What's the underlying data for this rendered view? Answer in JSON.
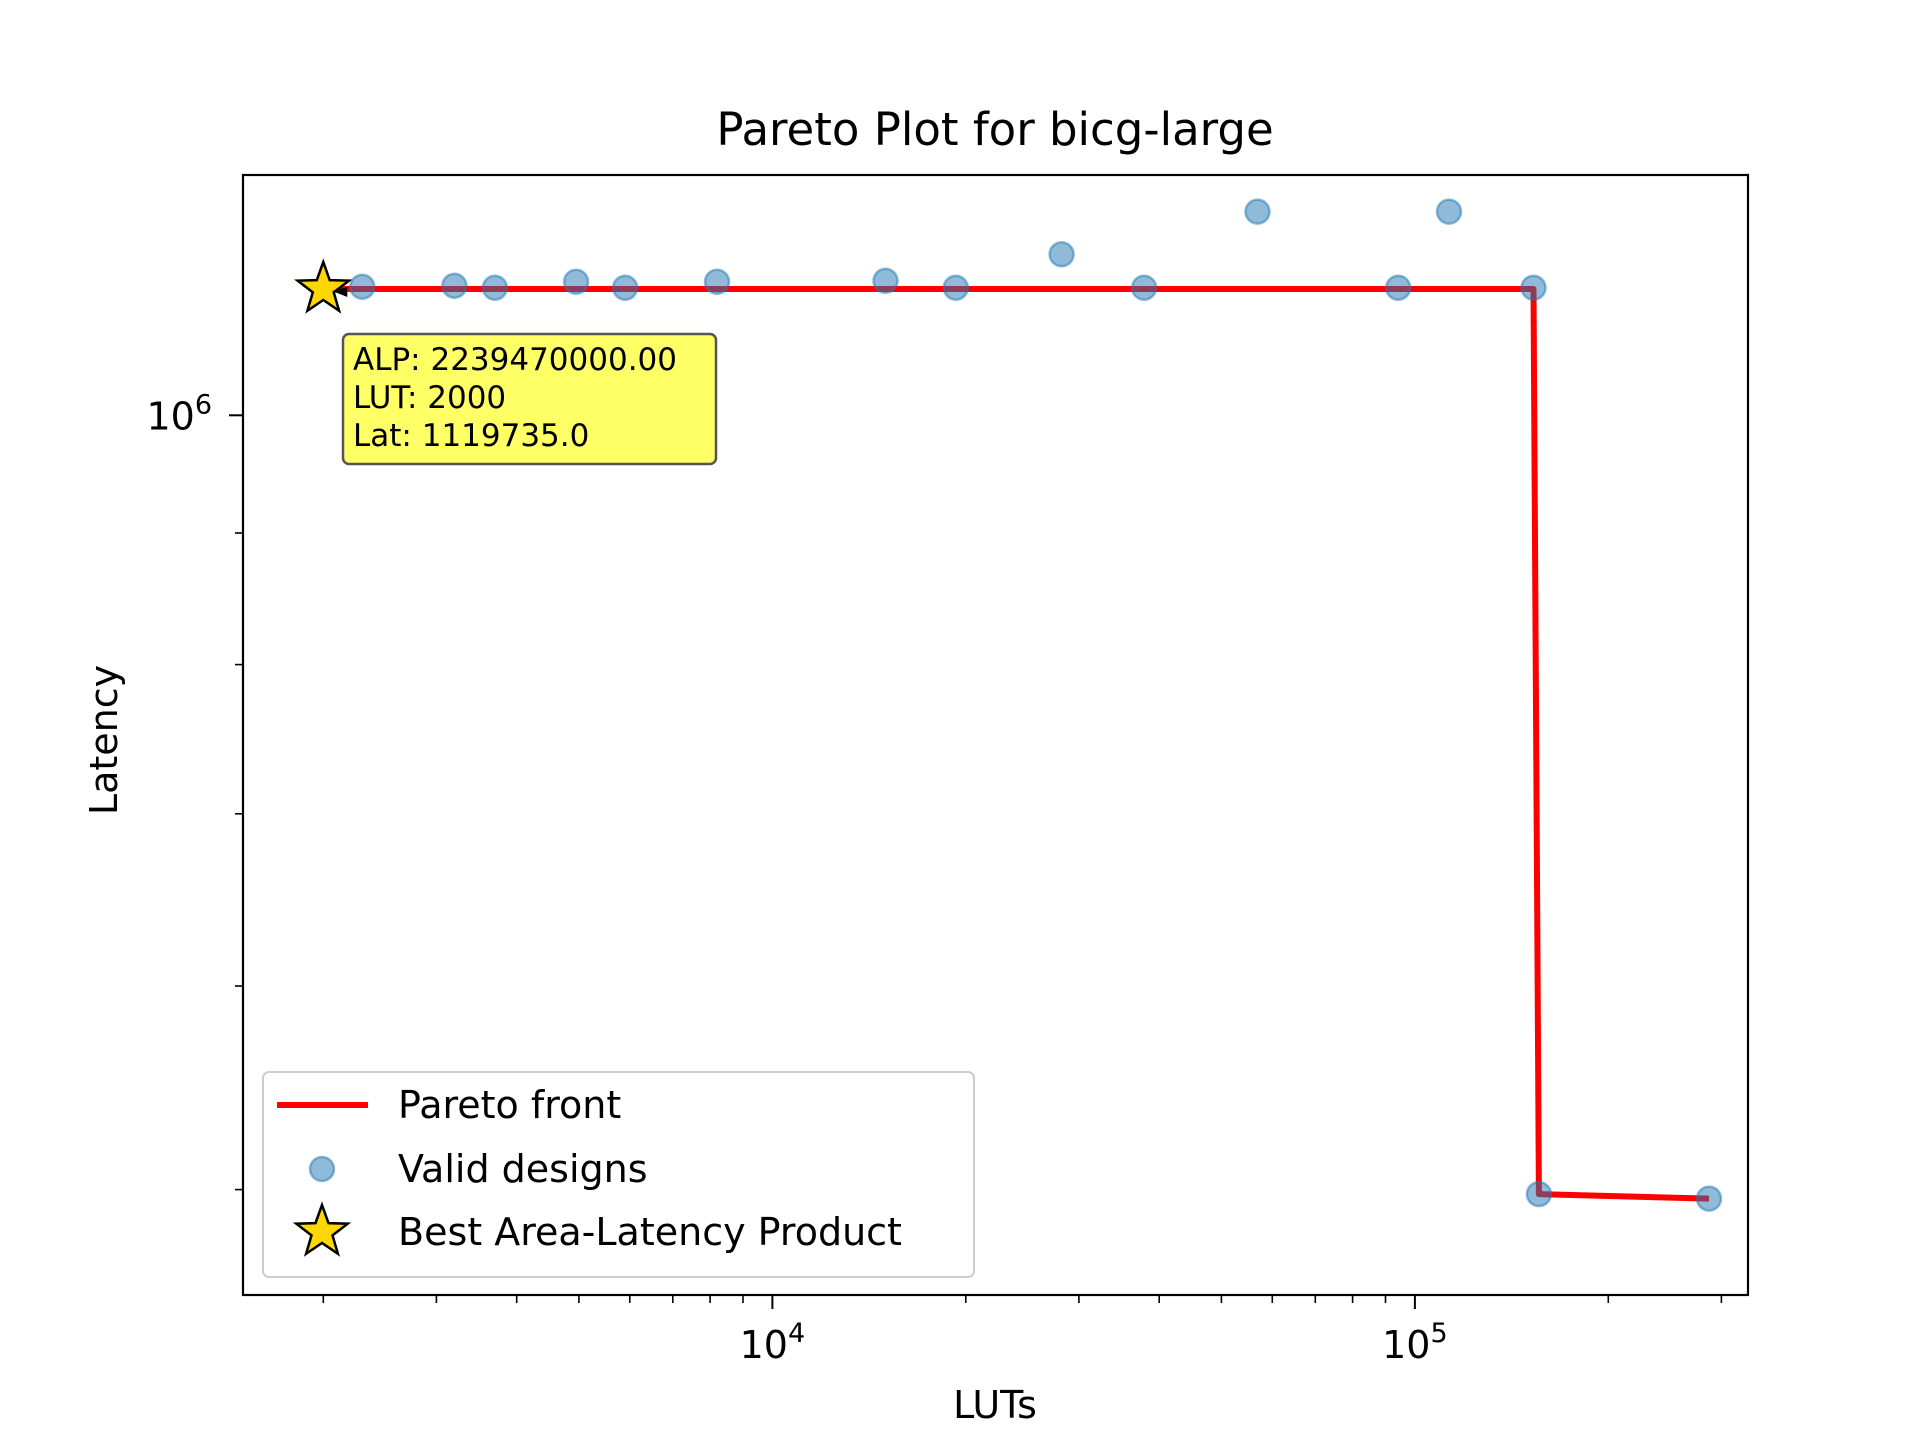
{
  "chart_data": {
    "type": "scatter",
    "title": "Pareto Plot for bicg-large",
    "xlabel": "LUTs",
    "ylabel": "Latency",
    "xscale": "log",
    "yscale": "log",
    "xlim": [
      1500,
      330000
    ],
    "ylim": [
      455000,
      1240000
    ],
    "xticks": [
      {
        "value": 10000,
        "label": "10",
        "exp": "4"
      },
      {
        "value": 100000,
        "label": "10",
        "exp": "5"
      }
    ],
    "yticks": [
      {
        "value": 1000000,
        "label": "10",
        "exp": "6"
      }
    ],
    "grid": false,
    "legend_position": "lower-left",
    "series": [
      {
        "name": "Valid designs",
        "kind": "scatter",
        "color": "#1f77b4",
        "points": [
          {
            "x": 2300,
            "y": 1122000
          },
          {
            "x": 3200,
            "y": 1123000
          },
          {
            "x": 3700,
            "y": 1121000
          },
          {
            "x": 4950,
            "y": 1127000
          },
          {
            "x": 5900,
            "y": 1121000
          },
          {
            "x": 8200,
            "y": 1127000
          },
          {
            "x": 15000,
            "y": 1128000
          },
          {
            "x": 19300,
            "y": 1121000
          },
          {
            "x": 28200,
            "y": 1155000
          },
          {
            "x": 37900,
            "y": 1121000
          },
          {
            "x": 56900,
            "y": 1200000
          },
          {
            "x": 94200,
            "y": 1121000
          },
          {
            "x": 113000,
            "y": 1200000
          },
          {
            "x": 153000,
            "y": 1121000
          },
          {
            "x": 156000,
            "y": 498000
          },
          {
            "x": 287000,
            "y": 496000
          }
        ]
      },
      {
        "name": "Pareto front",
        "kind": "line",
        "color": "#ff0000",
        "points": [
          {
            "x": 2000,
            "y": 1119735
          },
          {
            "x": 153000,
            "y": 1119735
          },
          {
            "x": 156000,
            "y": 498000
          },
          {
            "x": 287000,
            "y": 496000
          }
        ]
      },
      {
        "name": "Best Area-Latency Product",
        "kind": "star",
        "color": "#ffd700",
        "points": [
          {
            "x": 2000,
            "y": 1119735
          }
        ]
      }
    ],
    "annotation": {
      "lines": [
        "ALP: 2239470000.00",
        "LUT: 2000",
        "Lat: 1119735.0"
      ],
      "background": "#ffff66"
    }
  }
}
